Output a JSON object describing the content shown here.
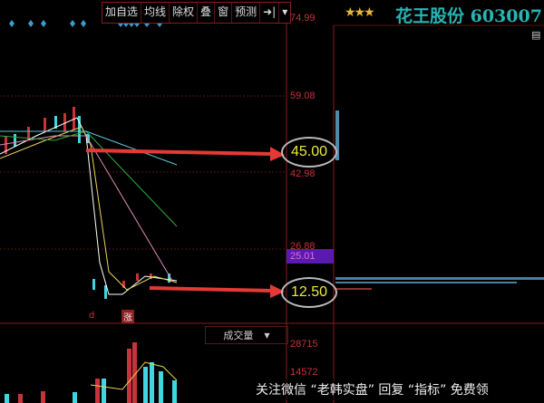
{
  "toolbar": {
    "items": [
      "加自选",
      "均线",
      "除权",
      "叠",
      "窗",
      "预测",
      "➜|",
      "▾"
    ]
  },
  "stock": {
    "name_code": "花王股份 603007",
    "stars": "★★★"
  },
  "price_axis": {
    "labels": [
      "74.99",
      "59.08",
      "42.98",
      "26.88",
      "25.01"
    ]
  },
  "callouts": {
    "high": "45.00",
    "low": "12.50"
  },
  "indicator_labels": {
    "d": "d",
    "zhang": "涨"
  },
  "volume": {
    "selector": "成交量",
    "labels": [
      "28715",
      "14572"
    ]
  },
  "watermark": "关注微信 “老韩实盘” 回复 “指标” 免费领",
  "colors": {
    "up": "#c8323a",
    "down": "#3fd6e0",
    "callout_text": "#ecec3b",
    "arrow": "#e53935",
    "title": "#27b5b5"
  }
}
